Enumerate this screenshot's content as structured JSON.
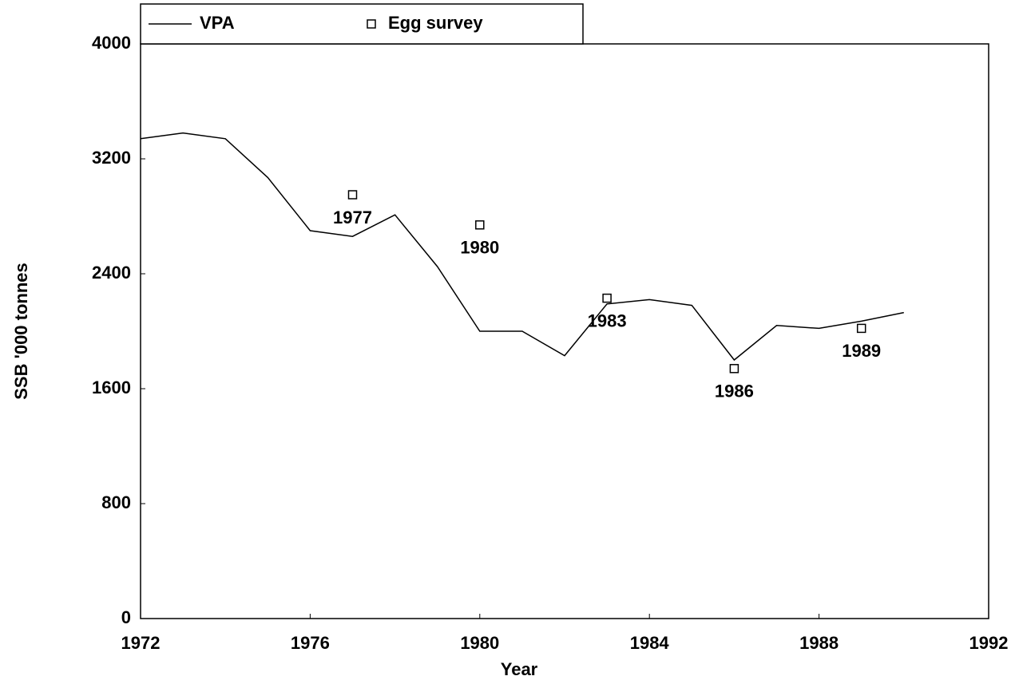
{
  "chart_data": {
    "type": "line",
    "xlabel": "Year",
    "ylabel": "SSB '000 tonnes",
    "xlim": [
      1972,
      1992
    ],
    "xticks": [
      1972,
      1976,
      1980,
      1984,
      1988,
      1992
    ],
    "ylim": [
      0,
      4000
    ],
    "yticks": [
      0,
      800,
      1600,
      2400,
      3200,
      4000
    ],
    "legend": "top-left",
    "series": [
      {
        "name": "VPA",
        "type": "line",
        "color": "#000000",
        "x": [
          1972,
          1973,
          1974,
          1975,
          1976,
          1977,
          1978,
          1979,
          1980,
          1981,
          1982,
          1983,
          1984,
          1985,
          1986,
          1987,
          1988,
          1989,
          1990
        ],
        "values": [
          3340,
          3380,
          3340,
          3070,
          2700,
          2660,
          2810,
          2450,
          2000,
          2000,
          1830,
          2190,
          2220,
          2180,
          1800,
          2040,
          2020,
          2070,
          2130
        ]
      },
      {
        "name": "Egg survey",
        "type": "scatter",
        "color": "#000000",
        "x": [
          1977,
          1980,
          1983,
          1986,
          1989
        ],
        "values": [
          2950,
          2740,
          2230,
          1740,
          2020
        ]
      }
    ]
  }
}
